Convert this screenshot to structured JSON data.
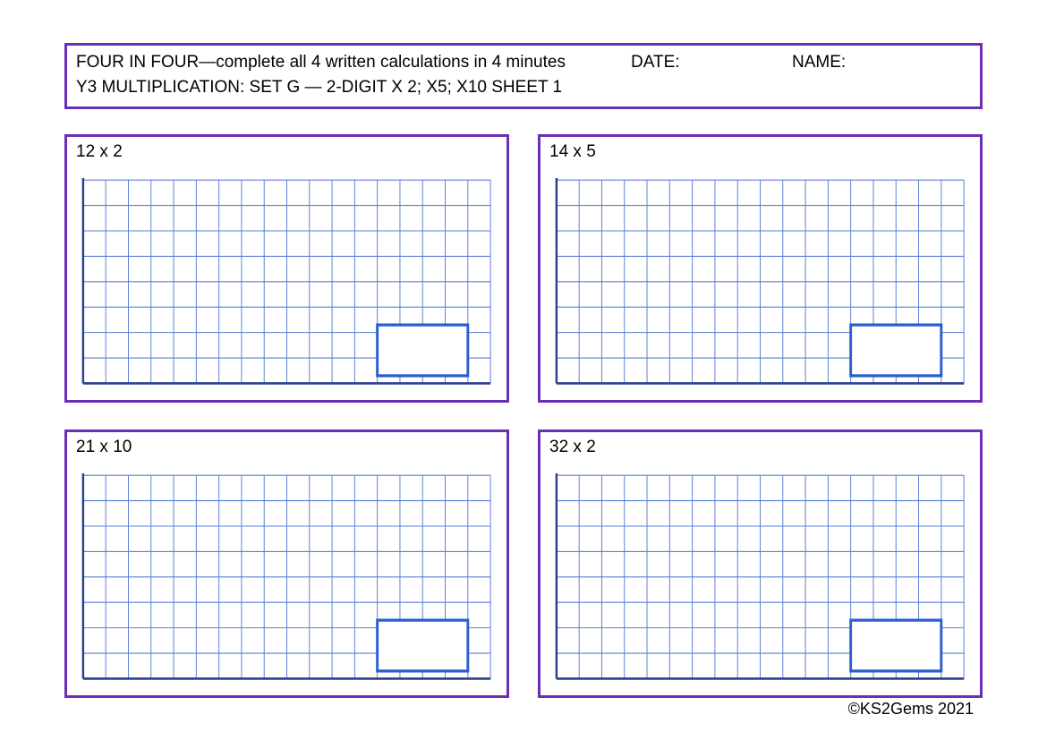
{
  "colors": {
    "border": "#6a2fb5",
    "grid_line": "#5a7fd6",
    "grid_axis": "#2a3f8f",
    "answer_box": "#2a5fd0",
    "background": "#ffffff",
    "text": "#000000"
  },
  "header": {
    "main": "FOUR IN FOUR—complete all 4 written calculations in 4 minutes",
    "date_label": "DATE:",
    "name_label": "NAME:",
    "subtitle": "Y3 MULTIPLICATION: SET G — 2-DIGIT X 2; X5; X10 SHEET 1"
  },
  "grid": {
    "cols": 18,
    "rows": 8,
    "cell_size": 26,
    "axis_width": 2.5,
    "line_width": 1,
    "answer_box": {
      "width_cells": 4,
      "height_cells": 2,
      "stroke_width": 3,
      "right_offset_cells": 1,
      "bottom_offset_cells": 0.3
    }
  },
  "problems": [
    {
      "label": "12 x 2"
    },
    {
      "label": "14 x 5"
    },
    {
      "label": "21 x 10"
    },
    {
      "label": "32 x 2"
    }
  ],
  "footer": "©KS2Gems 2021"
}
